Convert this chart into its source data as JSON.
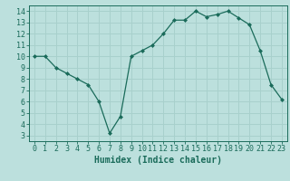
{
  "x": [
    0,
    1,
    2,
    3,
    4,
    5,
    6,
    7,
    8,
    9,
    10,
    11,
    12,
    13,
    14,
    15,
    16,
    17,
    18,
    19,
    20,
    21,
    22,
    23
  ],
  "y": [
    10,
    10,
    9,
    8.5,
    8,
    7.5,
    6,
    3.2,
    4.7,
    10,
    10.5,
    11,
    12,
    13.2,
    13.2,
    14,
    13.5,
    13.7,
    14,
    13.4,
    12.8,
    10.5,
    7.5,
    6.2
  ],
  "line_color": "#1a6b5a",
  "marker": "D",
  "marker_size": 2.0,
  "bg_color": "#bce0dd",
  "grid_color": "#a8d0cc",
  "xlabel": "Humidex (Indice chaleur)",
  "xlim": [
    -0.5,
    23.5
  ],
  "ylim": [
    2.5,
    14.5
  ],
  "yticks": [
    3,
    4,
    5,
    6,
    7,
    8,
    9,
    10,
    11,
    12,
    13,
    14
  ],
  "xticks": [
    0,
    1,
    2,
    3,
    4,
    5,
    6,
    7,
    8,
    9,
    10,
    11,
    12,
    13,
    14,
    15,
    16,
    17,
    18,
    19,
    20,
    21,
    22,
    23
  ],
  "tick_color": "#1a6b5a",
  "label_fontsize": 7,
  "tick_fontsize": 6
}
